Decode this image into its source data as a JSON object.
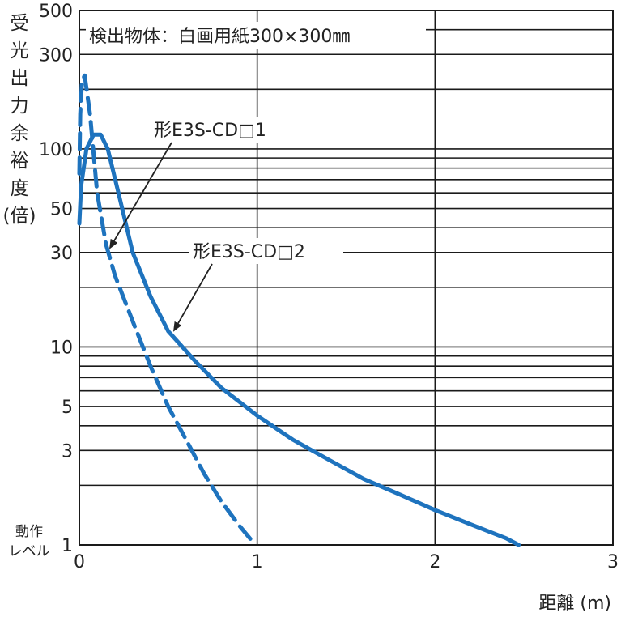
{
  "chart_data": {
    "type": "line",
    "ylabel_chars": [
      "受",
      "光",
      "出",
      "力",
      "余",
      "裕",
      "度",
      "(倍)"
    ],
    "xlabel": "距離 (m)",
    "condition": "検出物体：白画用紙300×300㎜",
    "y_operating_label": [
      "動作",
      "レベル"
    ],
    "xlim": [
      0,
      3
    ],
    "ylim": [
      1,
      500
    ],
    "y_scale": "log",
    "x_ticks": [
      "0",
      "1",
      "2",
      "3"
    ],
    "y_ticks": [
      {
        "value": 1,
        "label": "1"
      },
      {
        "value": 3,
        "label": "3"
      },
      {
        "value": 5,
        "label": "5"
      },
      {
        "value": 10,
        "label": "10"
      },
      {
        "value": 30,
        "label": "30"
      },
      {
        "value": 50,
        "label": "50"
      },
      {
        "value": 100,
        "label": "100"
      },
      {
        "value": 300,
        "label": "300"
      },
      {
        "value": 500,
        "label": "500"
      }
    ],
    "grid": true,
    "series": [
      {
        "name": "形E3S-CD□1",
        "style": "dashed",
        "color": "#1e73be",
        "points": [
          [
            0.0,
            75
          ],
          [
            0.005,
            150
          ],
          [
            0.015,
            220
          ],
          [
            0.03,
            235
          ],
          [
            0.06,
            150
          ],
          [
            0.1,
            60
          ],
          [
            0.15,
            33
          ],
          [
            0.2,
            23
          ],
          [
            0.3,
            13.5
          ],
          [
            0.4,
            8
          ],
          [
            0.5,
            5
          ],
          [
            0.6,
            3.4
          ],
          [
            0.7,
            2.3
          ],
          [
            0.8,
            1.65
          ],
          [
            0.9,
            1.25
          ],
          [
            0.97,
            1.05
          ]
        ]
      },
      {
        "name": "形E3S-CD□2",
        "style": "solid",
        "color": "#1e73be",
        "points": [
          [
            0.0,
            42
          ],
          [
            0.01,
            65
          ],
          [
            0.04,
            100
          ],
          [
            0.08,
            118
          ],
          [
            0.12,
            118
          ],
          [
            0.16,
            100
          ],
          [
            0.22,
            60
          ],
          [
            0.3,
            30
          ],
          [
            0.4,
            18
          ],
          [
            0.5,
            12
          ],
          [
            0.65,
            8.5
          ],
          [
            0.8,
            6.2
          ],
          [
            1.0,
            4.5
          ],
          [
            1.2,
            3.4
          ],
          [
            1.4,
            2.7
          ],
          [
            1.6,
            2.15
          ],
          [
            1.8,
            1.8
          ],
          [
            2.0,
            1.5
          ],
          [
            2.2,
            1.27
          ],
          [
            2.4,
            1.08
          ],
          [
            2.47,
            1.0
          ]
        ]
      }
    ]
  }
}
